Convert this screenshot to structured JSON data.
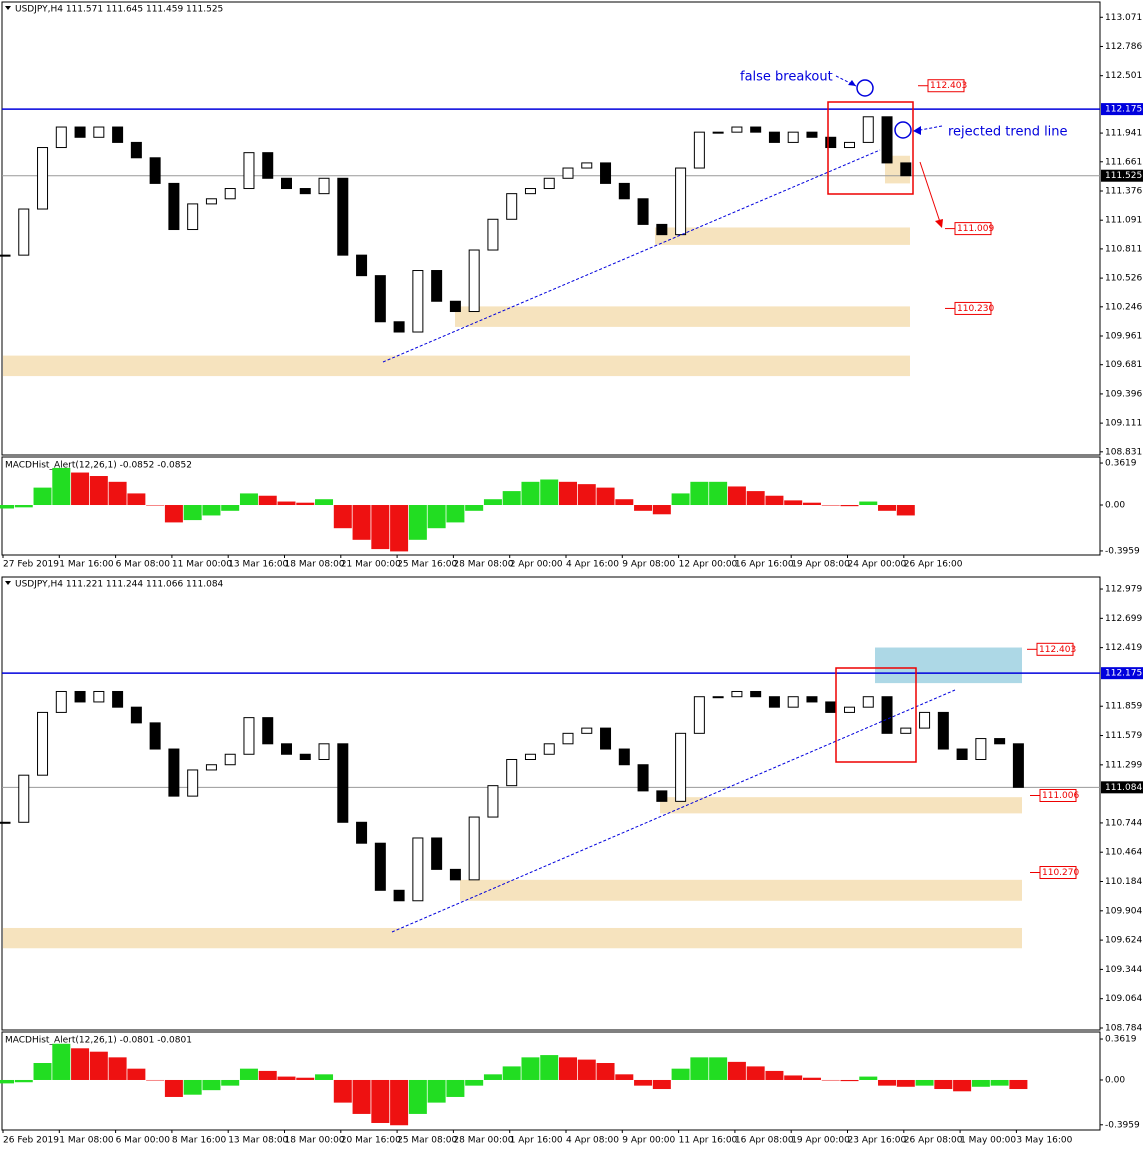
{
  "chart_data": [
    {
      "type": "candlestick",
      "header": "USDJPY,H4  111.571 111.645 111.459 111.525",
      "ylim": [
        108.8,
        113.22
      ],
      "yticks": [
        113.071,
        112.786,
        112.501,
        111.941,
        111.661,
        111.376,
        111.091,
        110.811,
        110.526,
        110.246,
        109.961,
        109.681,
        109.396,
        109.111,
        108.831
      ],
      "values": [
        110.75,
        111.2,
        111.8,
        112.0,
        111.9,
        112.0,
        111.85,
        111.7,
        111.45,
        111.0,
        111.25,
        111.3,
        111.4,
        111.75,
        111.5,
        111.4,
        111.35,
        111.5,
        110.75,
        110.55,
        110.1,
        110.0,
        110.6,
        110.3,
        110.2,
        110.8,
        111.1,
        111.35,
        111.4,
        111.5,
        111.6,
        111.65,
        111.45,
        111.3,
        111.05,
        110.95,
        111.6,
        111.95,
        111.95,
        112.0,
        111.95,
        111.85,
        111.95,
        111.9,
        111.8,
        111.85,
        112.1,
        111.65,
        111.525
      ],
      "xticks": [
        "27 Feb 2019",
        "1 Mar 16:00",
        "6 Mar 08:00",
        "11 Mar 00:00",
        "13 Mar 16:00",
        "18 Mar 08:00",
        "21 Mar 00:00",
        "25 Mar 16:00",
        "28 Mar 08:00",
        "2 Apr 00:00",
        "4 Apr 16:00",
        "9 Apr 08:00",
        "12 Apr 00:00",
        "16 Apr 16:00",
        "19 Apr 08:00",
        "24 Apr 00:00",
        "26 Apr 16:00"
      ],
      "resistance": 112.175,
      "last_price": 111.525,
      "zones": [
        {
          "low": 110.85,
          "high": 111.02
        },
        {
          "low": 110.05,
          "high": 110.25
        },
        {
          "low": 109.57,
          "high": 109.77
        },
        {
          "low": 111.45,
          "high": 111.72
        }
      ],
      "levels": [
        {
          "value": 112.403,
          "label": "112.403"
        },
        {
          "value": 111.009,
          "label": "111.009"
        },
        {
          "value": 110.23,
          "label": "110.230"
        }
      ],
      "annotations": [
        "false breakout",
        "rejected trend line"
      ],
      "macd": {
        "header": "MACDHist_Alert(12,26,1) -0.0852 -0.0852",
        "ylim": [
          -0.431,
          0.414
        ],
        "yticks": [
          0.3619,
          {
            "value": 0,
            "label": "0.00"
          },
          -0.3959
        ],
        "values": [
          -0.03,
          -0.02,
          0.15,
          0.32,
          0.28,
          0.25,
          0.2,
          0.1,
          0.0,
          -0.15,
          -0.13,
          -0.09,
          -0.05,
          0.1,
          0.08,
          0.03,
          0.02,
          0.05,
          -0.2,
          -0.3,
          -0.38,
          -0.4,
          -0.3,
          -0.2,
          -0.15,
          -0.05,
          0.05,
          0.12,
          0.2,
          0.22,
          0.2,
          0.18,
          0.15,
          0.05,
          -0.05,
          -0.08,
          0.1,
          0.2,
          0.2,
          0.16,
          0.12,
          0.08,
          0.04,
          0.02,
          0.0,
          -0.01,
          0.03,
          -0.05,
          -0.09
        ]
      }
    },
    {
      "type": "candlestick",
      "header": "USDJPY,H4  111.221 111.244 111.066 111.084",
      "ylim": [
        108.765,
        113.094
      ],
      "yticks": [
        112.979,
        112.699,
        112.419,
        111.859,
        111.579,
        111.299,
        110.744,
        110.464,
        110.184,
        109.904,
        109.624,
        109.344,
        109.064,
        108.784
      ],
      "values": [
        110.75,
        111.2,
        111.8,
        112.0,
        111.9,
        112.0,
        111.85,
        111.7,
        111.45,
        111.0,
        111.25,
        111.3,
        111.4,
        111.75,
        111.5,
        111.4,
        111.35,
        111.5,
        110.75,
        110.55,
        110.1,
        110.0,
        110.6,
        110.3,
        110.2,
        110.8,
        111.1,
        111.35,
        111.4,
        111.5,
        111.6,
        111.65,
        111.45,
        111.3,
        111.05,
        110.95,
        111.6,
        111.95,
        111.95,
        112.0,
        111.95,
        111.85,
        111.95,
        111.9,
        111.8,
        111.85,
        111.95,
        111.6,
        111.65,
        111.8,
        111.45,
        111.35,
        111.55,
        111.5,
        111.084
      ],
      "xticks": [
        "26 Feb 2019",
        "1 Mar 08:00",
        "6 Mar 00:00",
        "8 Mar 16:00",
        "13 Mar 08:00",
        "18 Mar 00:00",
        "20 Mar 16:00",
        "25 Mar 08:00",
        "28 Mar 00:00",
        "1 Apr 16:00",
        "4 Apr 08:00",
        "9 Apr 00:00",
        "11 Apr 16:00",
        "16 Apr 08:00",
        "19 Apr 00:00",
        "23 Apr 16:00",
        "26 Apr 08:00",
        "1 May 00:00",
        "3 May 16:00"
      ],
      "resistance": 112.175,
      "last_price": 111.084,
      "zones": [
        {
          "low": 110.835,
          "high": 110.99
        },
        {
          "low": 110.0,
          "high": 110.2
        },
        {
          "low": 109.546,
          "high": 109.74
        }
      ],
      "target_zone": {
        "low": 112.08,
        "high": 112.42
      },
      "levels": [
        {
          "value": 112.403,
          "label": "112.403"
        },
        {
          "value": 111.006,
          "label": "111.006"
        },
        {
          "value": 110.27,
          "label": "110.270"
        }
      ],
      "macd": {
        "header": "MACDHist_Alert(12,26,1) -0.0801 -0.0801",
        "ylim": [
          -0.442,
          0.424
        ],
        "yticks": [
          0.3619,
          {
            "value": 0,
            "label": "0.00"
          },
          -0.3959
        ],
        "values": [
          -0.03,
          -0.02,
          0.15,
          0.32,
          0.28,
          0.25,
          0.2,
          0.1,
          0.0,
          -0.15,
          -0.13,
          -0.09,
          -0.05,
          0.1,
          0.08,
          0.03,
          0.02,
          0.05,
          -0.2,
          -0.3,
          -0.38,
          -0.4,
          -0.3,
          -0.2,
          -0.15,
          -0.05,
          0.05,
          0.12,
          0.2,
          0.22,
          0.2,
          0.18,
          0.15,
          0.05,
          -0.05,
          -0.08,
          0.1,
          0.2,
          0.2,
          0.16,
          0.12,
          0.08,
          0.04,
          0.02,
          0.0,
          -0.01,
          0.03,
          -0.05,
          -0.06,
          -0.05,
          -0.08,
          -0.1,
          -0.06,
          -0.05,
          -0.08
        ]
      }
    }
  ]
}
